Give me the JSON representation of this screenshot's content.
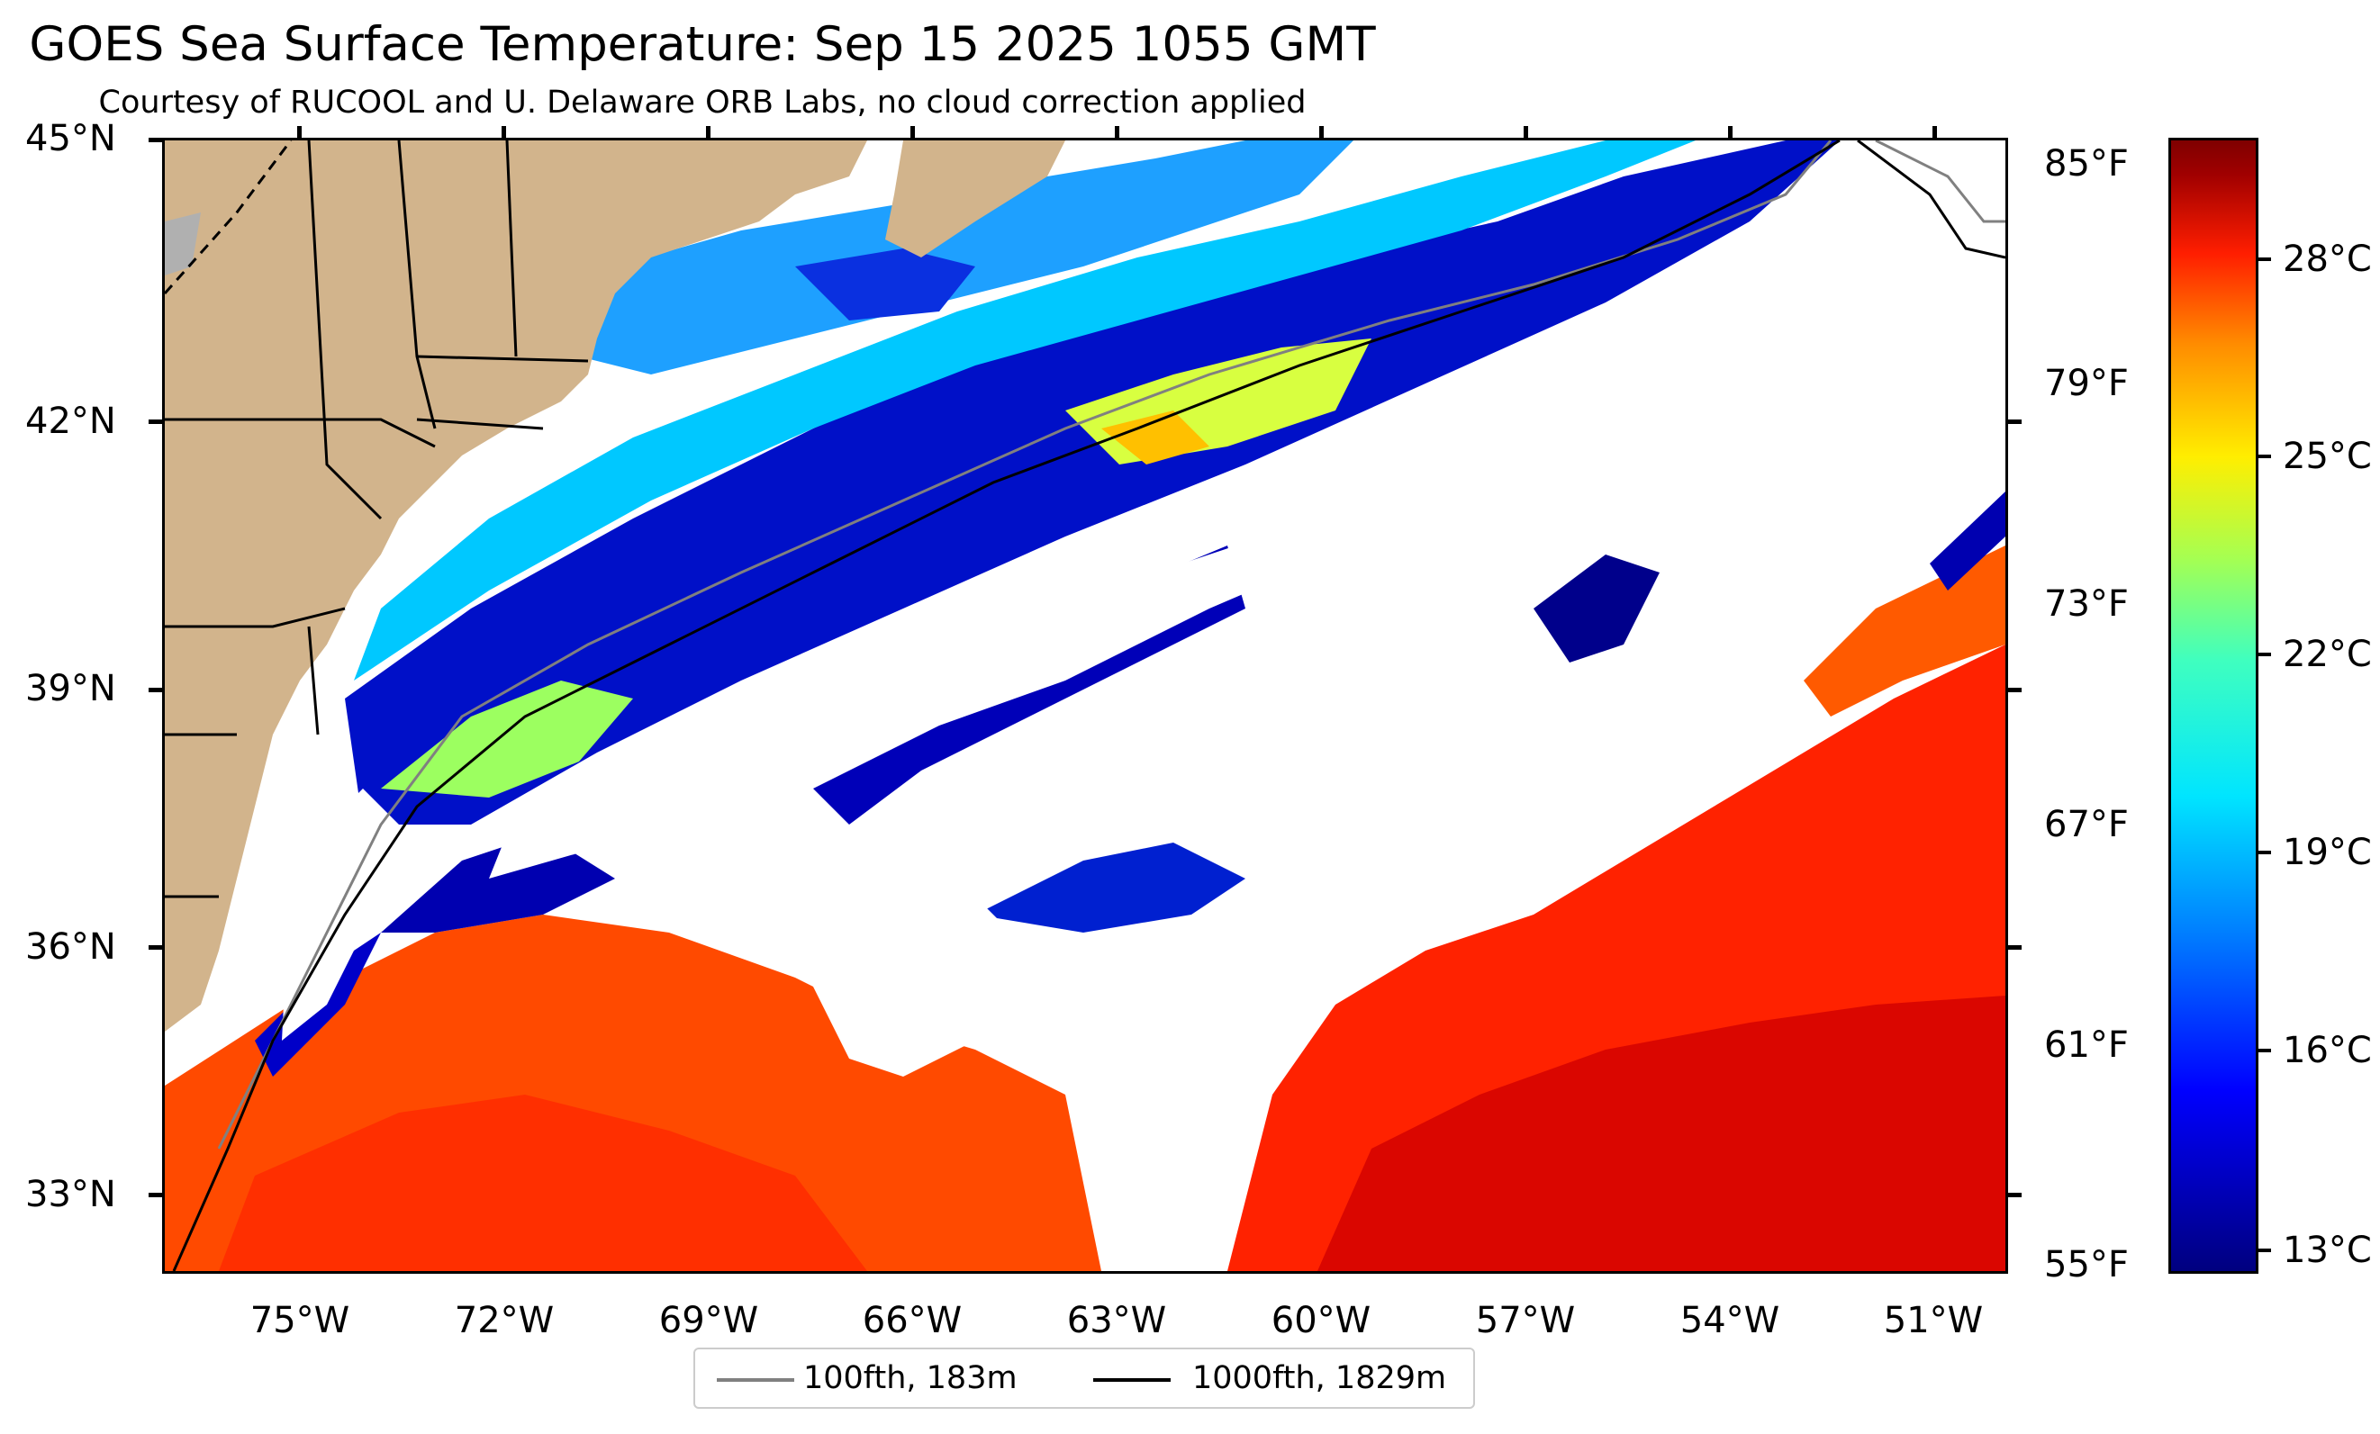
{
  "title": "GOES Sea Surface Temperature: Sep 15 2025 1055 GMT",
  "subtitle": "Courtesy of RUCOOL and U. Delaware ORB Labs, no cloud correction applied",
  "lat_labels": [
    "45°N",
    "42°N",
    "39°N",
    "36°N",
    "33°N"
  ],
  "lon_labels": [
    "75°W",
    "72°W",
    "69°W",
    "66°W",
    "63°W",
    "60°W",
    "57°W",
    "54°W",
    "51°W"
  ],
  "fahrenheit_labels": [
    "85°F",
    "79°F",
    "73°F",
    "67°F",
    "61°F",
    "55°F"
  ],
  "celsius_labels": [
    "28°C",
    "25°C",
    "22°C",
    "19°C",
    "16°C",
    "13°C"
  ],
  "legend": [
    {
      "label": "100fth, 183m",
      "color": "#808080"
    },
    {
      "label": "1000fth, 1829m",
      "color": "#000000"
    }
  ],
  "colors": {
    "land": "#d2b48c",
    "cold": "#00008b",
    "cool": "#00bfff",
    "mild": "#7fff7f",
    "warm": "#ff4500",
    "hot": "#cc0000",
    "cloud": "#ffffff"
  },
  "colorbar": {
    "min_c": 12.5,
    "max_c": 30,
    "colormap": "jet"
  }
}
